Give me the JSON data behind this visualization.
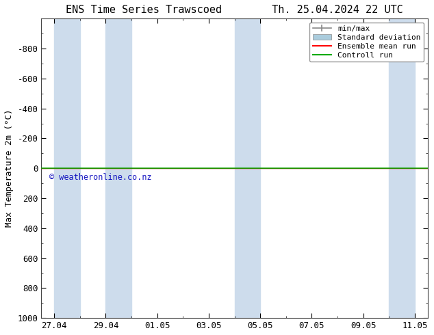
{
  "title": "ENS Time Series Trawscoed",
  "title2": "Th. 25.04.2024 22 UTC",
  "ylabel": "Max Temperature 2m (°C)",
  "ylim_top": -1000,
  "ylim_bottom": 1000,
  "yticks": [
    -800,
    -600,
    -400,
    -200,
    0,
    200,
    400,
    600,
    800,
    1000
  ],
  "xtick_labels": [
    "27.04",
    "29.04",
    "01.05",
    "03.05",
    "05.05",
    "07.05",
    "09.05",
    "11.05"
  ],
  "shaded_bands": [
    [
      0.0,
      1.0
    ],
    [
      2.0,
      3.0
    ],
    [
      7.0,
      8.0
    ],
    [
      13.0,
      14.0
    ]
  ],
  "shaded_color": "#cddcec",
  "control_run_y": 0,
  "ensemble_mean_y": 0,
  "control_run_color": "#00aa00",
  "ensemble_mean_color": "#ff0000",
  "minmax_color": "#888888",
  "std_color": "#aaccdd",
  "background_color": "#ffffff",
  "plot_bg_color": "#ffffff",
  "watermark": "© weatheronline.co.nz",
  "watermark_color": "#0000bb",
  "legend_labels": [
    "min/max",
    "Standard deviation",
    "Ensemble mean run",
    "Controll run"
  ],
  "xmin": -0.5,
  "xmax": 14.5,
  "title_fontsize": 11,
  "axis_fontsize": 9,
  "tick_fontsize": 9,
  "legend_fontsize": 8
}
